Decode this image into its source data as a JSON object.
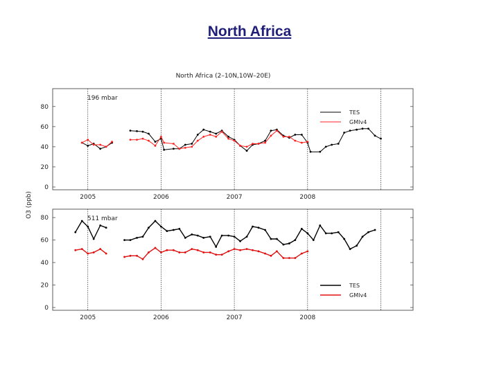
{
  "slide": {
    "title": "North Africa"
  },
  "chart_data": {
    "type": "line",
    "title": "North Africa (2–10N,10W–20E)",
    "ylabel": "O3 (ppb)",
    "xlabel": "",
    "x_ticks": [
      "2005",
      "2006",
      "2007",
      "2008"
    ],
    "panels": [
      {
        "label": "196 mbar",
        "ylim": [
          0,
          95
        ],
        "yticks": [
          "0",
          "20",
          "40",
          "60",
          "80"
        ],
        "legend": {
          "position": "top-right"
        },
        "series": [
          {
            "name": "TES",
            "color": "#000000",
            "segments": [
              [
                [
                  2004.92,
                  44
                ],
                [
                  2005.0,
                  41
                ],
                [
                  2005.08,
                  43
                ],
                [
                  2005.17,
                  38
                ],
                [
                  2005.25,
                  40
                ],
                [
                  2005.33,
                  44
                ]
              ],
              [
                [
                  2005.58,
                  56
                ],
                [
                  2005.67,
                  55.5
                ],
                [
                  2005.75,
                  55
                ],
                [
                  2005.83,
                  53
                ],
                [
                  2005.92,
                  45
                ],
                [
                  2006.0,
                  48
                ],
                [
                  2006.04,
                  37
                ],
                [
                  2006.17,
                  38
                ],
                [
                  2006.25,
                  38
                ],
                [
                  2006.33,
                  42
                ],
                [
                  2006.42,
                  43
                ],
                [
                  2006.5,
                  52
                ],
                [
                  2006.58,
                  57
                ],
                [
                  2006.67,
                  55
                ],
                [
                  2006.75,
                  53
                ],
                [
                  2006.83,
                  56
                ],
                [
                  2006.92,
                  50
                ],
                [
                  2007.0,
                  47
                ],
                [
                  2007.08,
                  41
                ],
                [
                  2007.17,
                  36
                ],
                [
                  2007.25,
                  42
                ],
                [
                  2007.33,
                  43
                ],
                [
                  2007.42,
                  46
                ],
                [
                  2007.5,
                  56
                ],
                [
                  2007.58,
                  57
                ],
                [
                  2007.67,
                  51
                ],
                [
                  2007.75,
                  49
                ],
                [
                  2007.83,
                  52
                ],
                [
                  2007.92,
                  52
                ],
                [
                  2008.0,
                  44
                ],
                [
                  2008.04,
                  35
                ],
                [
                  2008.17,
                  35
                ],
                [
                  2008.25,
                  40
                ],
                [
                  2008.33,
                  42
                ],
                [
                  2008.42,
                  43
                ],
                [
                  2008.5,
                  54
                ],
                [
                  2008.58,
                  56
                ],
                [
                  2008.67,
                  57
                ],
                [
                  2008.75,
                  58
                ],
                [
                  2008.83,
                  58
                ],
                [
                  2008.92,
                  51
                ],
                [
                  2009.0,
                  48
                ]
              ]
            ]
          },
          {
            "name": "GMIv4",
            "color": "#ff2020",
            "segments": [
              [
                [
                  2004.92,
                  44
                ],
                [
                  2005.0,
                  47
                ],
                [
                  2005.08,
                  42
                ],
                [
                  2005.17,
                  42
                ],
                [
                  2005.25,
                  40
                ],
                [
                  2005.33,
                  45
                ]
              ],
              [
                [
                  2005.58,
                  47
                ],
                [
                  2005.67,
                  47
                ],
                [
                  2005.75,
                  48
                ],
                [
                  2005.83,
                  46
                ],
                [
                  2005.92,
                  41
                ],
                [
                  2006.0,
                  50
                ],
                [
                  2006.04,
                  44
                ],
                [
                  2006.17,
                  43
                ],
                [
                  2006.25,
                  38
                ],
                [
                  2006.33,
                  39
                ],
                [
                  2006.42,
                  40
                ],
                [
                  2006.5,
                  46
                ],
                [
                  2006.58,
                  50
                ],
                [
                  2006.67,
                  52
                ],
                [
                  2006.75,
                  50
                ],
                [
                  2006.83,
                  55
                ],
                [
                  2006.92,
                  48
                ],
                [
                  2007.0,
                  46
                ],
                [
                  2007.08,
                  41
                ],
                [
                  2007.17,
                  40
                ],
                [
                  2007.25,
                  43
                ],
                [
                  2007.33,
                  43
                ],
                [
                  2007.42,
                  44
                ],
                [
                  2007.5,
                  51
                ],
                [
                  2007.58,
                  56
                ],
                [
                  2007.67,
                  50
                ],
                [
                  2007.75,
                  50
                ],
                [
                  2007.83,
                  46
                ],
                [
                  2007.92,
                  44
                ],
                [
                  2008.0,
                  45
                ]
              ]
            ]
          }
        ]
      },
      {
        "label": "511 mbar",
        "ylim": [
          0,
          85
        ],
        "yticks": [
          "0",
          "20",
          "40",
          "60",
          "80"
        ],
        "legend": {
          "position": "bottom-right"
        },
        "series": [
          {
            "name": "TES",
            "color": "#000000",
            "segments": [
              [
                [
                  2004.83,
                  67
                ],
                [
                  2004.92,
                  77
                ],
                [
                  2005.0,
                  72
                ],
                [
                  2005.08,
                  61
                ],
                [
                  2005.17,
                  73
                ],
                [
                  2005.25,
                  71
                ]
              ],
              [
                [
                  2005.5,
                  60
                ],
                [
                  2005.58,
                  60
                ],
                [
                  2005.67,
                  62
                ],
                [
                  2005.75,
                  63
                ],
                [
                  2005.83,
                  71
                ],
                [
                  2005.92,
                  77
                ],
                [
                  2006.0,
                  72
                ],
                [
                  2006.08,
                  68
                ],
                [
                  2006.17,
                  69
                ],
                [
                  2006.25,
                  70
                ],
                [
                  2006.33,
                  62
                ],
                [
                  2006.42,
                  65
                ],
                [
                  2006.5,
                  64
                ],
                [
                  2006.58,
                  62
                ],
                [
                  2006.67,
                  63
                ],
                [
                  2006.75,
                  54
                ],
                [
                  2006.83,
                  64
                ],
                [
                  2006.92,
                  64
                ],
                [
                  2007.0,
                  63
                ],
                [
                  2007.08,
                  59
                ],
                [
                  2007.17,
                  63
                ],
                [
                  2007.25,
                  72
                ],
                [
                  2007.33,
                  71
                ],
                [
                  2007.42,
                  69
                ],
                [
                  2007.5,
                  61
                ],
                [
                  2007.58,
                  61
                ],
                [
                  2007.67,
                  56
                ],
                [
                  2007.75,
                  57
                ],
                [
                  2007.83,
                  60
                ],
                [
                  2007.92,
                  70
                ],
                [
                  2008.0,
                  66
                ],
                [
                  2008.08,
                  60
                ],
                [
                  2008.17,
                  73
                ],
                [
                  2008.25,
                  66
                ],
                [
                  2008.33,
                  66
                ],
                [
                  2008.42,
                  67
                ],
                [
                  2008.5,
                  61
                ],
                [
                  2008.58,
                  52
                ],
                [
                  2008.67,
                  55
                ],
                [
                  2008.75,
                  63
                ],
                [
                  2008.83,
                  67
                ],
                [
                  2008.92,
                  69
                ]
              ]
            ]
          },
          {
            "name": "GMIv4",
            "color": "#e01010",
            "segments": [
              [
                [
                  2004.83,
                  51
                ],
                [
                  2004.92,
                  52
                ],
                [
                  2005.0,
                  48
                ],
                [
                  2005.08,
                  49
                ],
                [
                  2005.17,
                  52
                ],
                [
                  2005.25,
                  48
                ]
              ],
              [
                [
                  2005.5,
                  45
                ],
                [
                  2005.58,
                  46
                ],
                [
                  2005.67,
                  46
                ],
                [
                  2005.75,
                  43
                ],
                [
                  2005.83,
                  49
                ],
                [
                  2005.92,
                  53
                ],
                [
                  2006.0,
                  49
                ],
                [
                  2006.08,
                  51
                ],
                [
                  2006.17,
                  51
                ],
                [
                  2006.25,
                  49
                ],
                [
                  2006.33,
                  49
                ],
                [
                  2006.42,
                  52
                ],
                [
                  2006.5,
                  51
                ],
                [
                  2006.58,
                  49
                ],
                [
                  2006.67,
                  49
                ],
                [
                  2006.75,
                  47
                ],
                [
                  2006.83,
                  47
                ],
                [
                  2006.92,
                  50
                ],
                [
                  2007.0,
                  52
                ],
                [
                  2007.08,
                  51
                ],
                [
                  2007.17,
                  52
                ],
                [
                  2007.25,
                  51
                ],
                [
                  2007.33,
                  50
                ],
                [
                  2007.42,
                  48
                ],
                [
                  2007.5,
                  46
                ],
                [
                  2007.58,
                  50
                ],
                [
                  2007.67,
                  44
                ],
                [
                  2007.75,
                  44
                ],
                [
                  2007.83,
                  44
                ],
                [
                  2007.92,
                  48
                ],
                [
                  2008.0,
                  50
                ]
              ]
            ]
          }
        ]
      }
    ]
  }
}
